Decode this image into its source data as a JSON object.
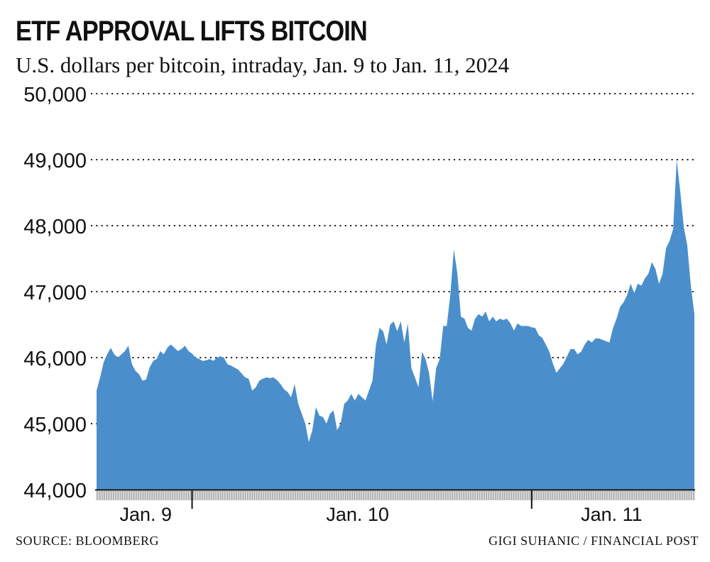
{
  "chart_data": {
    "type": "area",
    "title": "ETF APPROVAL LIFTS BITCOIN",
    "subtitle": "U.S. dollars per bitcoin, intraday, Jan. 9 to Jan. 11, 2024",
    "source": "SOURCE: BLOOMBERG",
    "credit": "GIGI SUHANIC / FINANCIAL POST",
    "fill_color": "#4a8fcb",
    "grid": true,
    "grid_style": "dotted",
    "ylim": [
      44000,
      50000
    ],
    "y_ticks": [
      44000,
      45000,
      46000,
      47000,
      48000,
      49000,
      50000
    ],
    "y_tick_labels": [
      "44,000",
      "45,000",
      "46,000",
      "47,000",
      "48,000",
      "49,000",
      "50,000"
    ],
    "x_tick_labels": [
      "Jan. 9",
      "Jan. 10",
      "Jan. 11"
    ],
    "x_start": "2024-01-09T17:15",
    "x_interval_minutes": 15,
    "values": [
      45500,
      45700,
      45930,
      46050,
      46150,
      46050,
      46000,
      46050,
      46100,
      46180,
      45900,
      45800,
      45750,
      45650,
      45670,
      45850,
      45950,
      45980,
      46100,
      46050,
      46150,
      46200,
      46150,
      46100,
      46130,
      46180,
      46100,
      46060,
      46000,
      45980,
      45950,
      45960,
      45980,
      45950,
      46000,
      46020,
      46000,
      45900,
      45880,
      45850,
      45820,
      45760,
      45700,
      45680,
      45500,
      45550,
      45650,
      45680,
      45700,
      45690,
      45700,
      45660,
      45600,
      45520,
      45480,
      45400,
      45600,
      45300,
      45150,
      45000,
      44720,
      44900,
      45250,
      45120,
      45100,
      45000,
      45150,
      45200,
      44900,
      45000,
      45300,
      45350,
      45450,
      45350,
      45450,
      45400,
      45350,
      45500,
      45650,
      46200,
      46450,
      46400,
      46200,
      46500,
      46550,
      46400,
      46550,
      46230,
      46520,
      45840,
      45700,
      45550,
      46090,
      45980,
      45770,
      45340,
      45840,
      45980,
      46480,
      46480,
      46950,
      47640,
      47270,
      46620,
      46590,
      46450,
      46410,
      46590,
      46660,
      46620,
      46700,
      46550,
      46620,
      46550,
      46590,
      46570,
      46590,
      46520,
      46410,
      46520,
      46480,
      46480,
      46480,
      46460,
      46450,
      46340,
      46300,
      46200,
      46090,
      45910,
      45770,
      45840,
      45910,
      46020,
      46130,
      46130,
      46050,
      46090,
      46200,
      46270,
      46230,
      46290,
      46290,
      46270,
      46250,
      46230,
      46450,
      46590,
      46770,
      46840,
      46950,
      47120,
      46980,
      47120,
      47090,
      47200,
      47270,
      47450,
      47340,
      47120,
      47270,
      47660,
      47770,
      47950,
      49000,
      48520,
      47980,
      47700,
      47090,
      46660
    ]
  }
}
